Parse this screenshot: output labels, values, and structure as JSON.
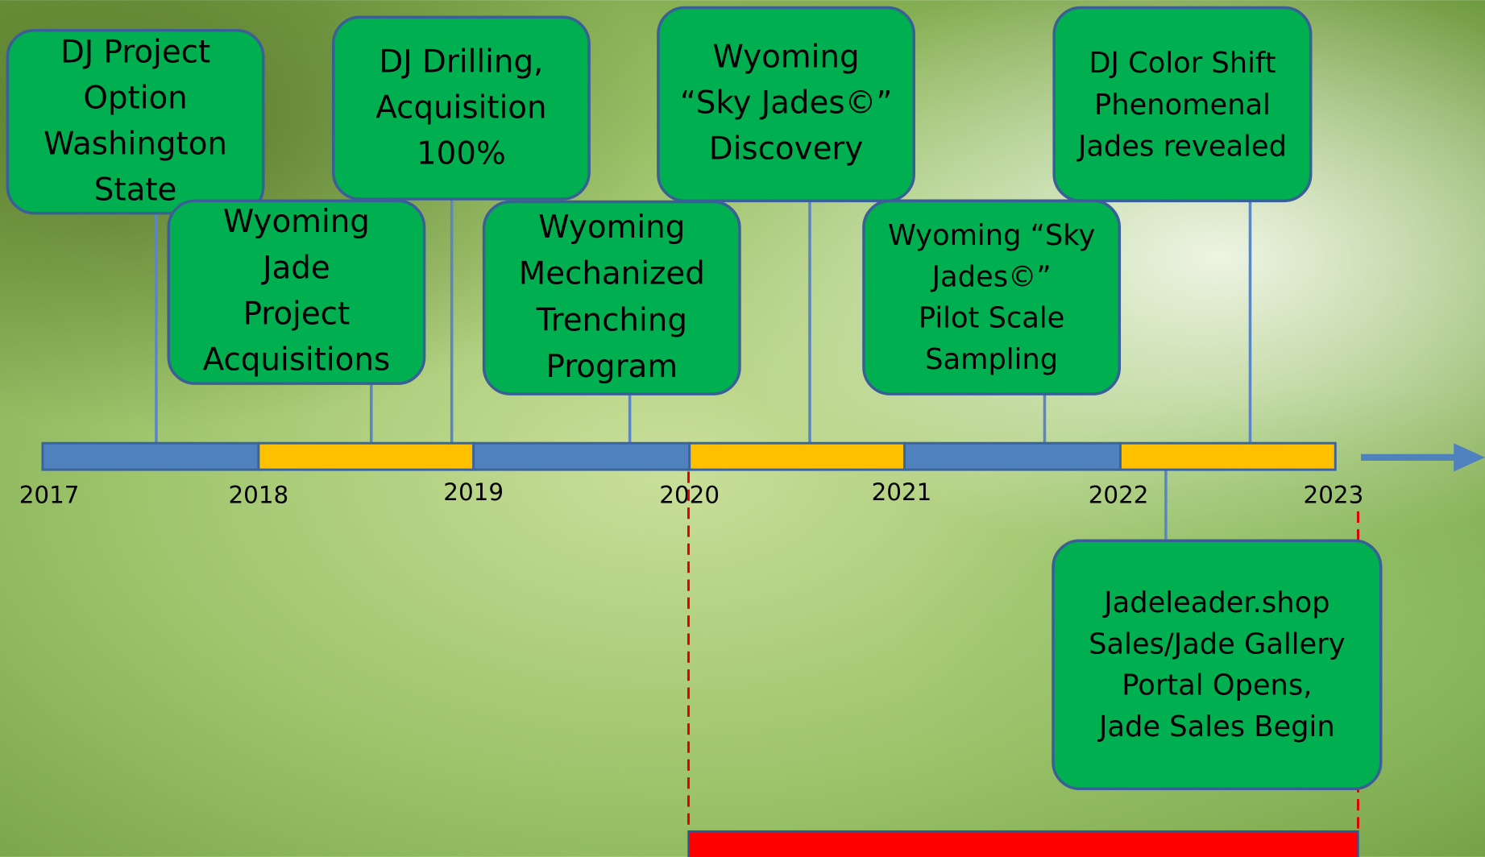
{
  "timeline": {
    "years": [
      "2017",
      "2018",
      "2019",
      "2020",
      "2021",
      "2022",
      "2023"
    ]
  },
  "events": [
    {
      "lines": [
        "DJ Project",
        "Option",
        "Washington",
        "State"
      ]
    },
    {
      "lines": [
        "Wyoming",
        "Jade",
        "Project",
        "Acquisitions"
      ]
    },
    {
      "lines": [
        "DJ Drilling,",
        "Acquisition",
        "100%"
      ]
    },
    {
      "lines": [
        "Wyoming",
        "Mechanized",
        "Trenching",
        "Program"
      ]
    },
    {
      "lines": [
        "Wyoming",
        "“Sky Jades©”",
        "Discovery"
      ]
    },
    {
      "lines": [
        "Wyoming “Sky",
        "Jades©”",
        "Pilot Scale",
        "Sampling"
      ]
    },
    {
      "lines": [
        "DJ Color Shift",
        "Phenomenal",
        "Jades revealed"
      ]
    },
    {
      "lines": [
        "Jadeleader.shop",
        "Sales/Jade Gallery",
        "Portal Opens,",
        "Jade Sales Begin"
      ]
    }
  ]
}
